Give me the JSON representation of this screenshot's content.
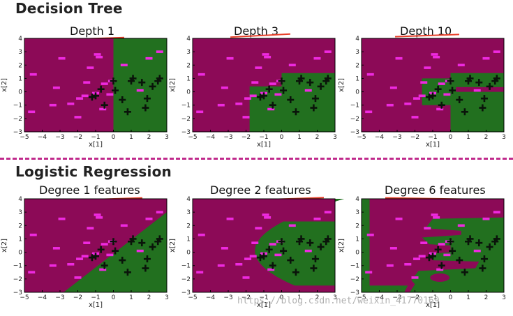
{
  "sections": {
    "top_title": "Decision Tree",
    "bottom_title": "Logistic Regression"
  },
  "colors": {
    "negative_region": "#8c0a57",
    "positive_region": "#22701f",
    "negative_marker": "#ee2ae0",
    "positive_marker": "#0a140a",
    "divider": "#c02a8c",
    "annotation": "#e8402a"
  },
  "watermark": "https://blog.csdn.net/weixin_41770169",
  "chart_data": [
    {
      "type": "scatter",
      "title": "Depth 1",
      "xlabel": "x[1]",
      "ylabel": "x[2]",
      "xlim": [
        -5,
        3
      ],
      "ylim": [
        -3,
        4
      ],
      "xticks": [
        "−5",
        "−4",
        "−3",
        "−2",
        "−1",
        "0",
        "1",
        "2",
        "3"
      ],
      "yticks": [
        "−3",
        "−2",
        "−1",
        "0",
        "1",
        "2",
        "3",
        "4"
      ],
      "boundary": "depth1"
    },
    {
      "type": "scatter",
      "title": "Depth 3",
      "xlabel": "x[1]",
      "ylabel": "x[2]",
      "xlim": [
        -5,
        3
      ],
      "ylim": [
        -3,
        4
      ],
      "xticks": [
        "−5",
        "−4",
        "−3",
        "−2",
        "−1",
        "0",
        "1",
        "2",
        "3"
      ],
      "yticks": [
        "−3",
        "−2",
        "−1",
        "0",
        "1",
        "2",
        "3",
        "4"
      ],
      "boundary": "depth3"
    },
    {
      "type": "scatter",
      "title": "Depth 10",
      "xlabel": "x[1]",
      "ylabel": "x[2]",
      "xlim": [
        -5,
        3
      ],
      "ylim": [
        -3,
        4
      ],
      "xticks": [
        "−5",
        "−4",
        "−3",
        "−2",
        "−1",
        "0",
        "1",
        "2",
        "3"
      ],
      "yticks": [
        "−3",
        "−2",
        "−1",
        "0",
        "1",
        "2",
        "3",
        "4"
      ],
      "boundary": "depth10"
    },
    {
      "type": "scatter",
      "title": "Degree 1 features",
      "xlabel": "x[1]",
      "ylabel": "x[2]",
      "xlim": [
        -5,
        3
      ],
      "ylim": [
        -3,
        4
      ],
      "xticks": [
        "−5",
        "−4",
        "−3",
        "−2",
        "−1",
        "0",
        "1",
        "2",
        "3"
      ],
      "yticks": [
        "−3",
        "−2",
        "−1",
        "0",
        "1",
        "2",
        "3",
        "4"
      ],
      "boundary": "deg1"
    },
    {
      "type": "scatter",
      "title": "Degree 2 features",
      "xlabel": "x[1]",
      "ylabel": "x[2]",
      "xlim": [
        -5,
        3
      ],
      "ylim": [
        -3,
        4
      ],
      "xticks": [
        "−5",
        "−4",
        "−3",
        "−2",
        "−1",
        "0",
        "1",
        "2",
        "3"
      ],
      "yticks": [
        "−3",
        "−2",
        "−1",
        "0",
        "1",
        "2",
        "3",
        "4"
      ],
      "boundary": "deg2"
    },
    {
      "type": "scatter",
      "title": "Degree 6 features",
      "xlabel": "x[1]",
      "ylabel": "x[2]",
      "xlim": [
        -5,
        3
      ],
      "ylim": [
        -3,
        4
      ],
      "xticks": [
        "−5",
        "−4",
        "−3",
        "−2",
        "−1",
        "0",
        "1",
        "2",
        "3"
      ],
      "yticks": [
        "−3",
        "−2",
        "−1",
        "0",
        "1",
        "2",
        "3",
        "4"
      ],
      "boundary": "deg6"
    }
  ],
  "points": {
    "negative": [
      [
        -4.5,
        1.3
      ],
      [
        -4.6,
        -1.5
      ],
      [
        -3.2,
        0.3
      ],
      [
        -3.4,
        -1.0
      ],
      [
        -2.9,
        2.5
      ],
      [
        -2.4,
        -0.9
      ],
      [
        -1.9,
        -0.5
      ],
      [
        -2.0,
        -1.9
      ],
      [
        -1.5,
        0.7
      ],
      [
        -1.6,
        -0.3
      ],
      [
        -1.3,
        1.8
      ],
      [
        -0.9,
        2.8
      ],
      [
        -0.8,
        2.6
      ],
      [
        -0.6,
        -1.3
      ],
      [
        -0.2,
        -0.2
      ],
      [
        -0.1,
        0.8
      ],
      [
        0.6,
        2.0
      ],
      [
        1.5,
        0.1
      ],
      [
        2.0,
        2.5
      ],
      [
        2.6,
        3.0
      ],
      [
        -0.5,
        0.6
      ],
      [
        -1.0,
        -0.1
      ]
    ],
    "positive": [
      [
        -1.2,
        -0.4
      ],
      [
        -1.0,
        -0.3
      ],
      [
        -0.7,
        0.2
      ],
      [
        -0.5,
        -1.0
      ],
      [
        0.0,
        0.8
      ],
      [
        0.1,
        0.1
      ],
      [
        0.5,
        -0.6
      ],
      [
        0.8,
        -1.5
      ],
      [
        1.1,
        1.0
      ],
      [
        1.0,
        0.8
      ],
      [
        1.6,
        0.7
      ],
      [
        1.8,
        -1.2
      ],
      [
        2.2,
        0.4
      ],
      [
        2.5,
        0.8
      ],
      [
        2.6,
        1.0
      ],
      [
        1.9,
        -0.5
      ]
    ]
  }
}
